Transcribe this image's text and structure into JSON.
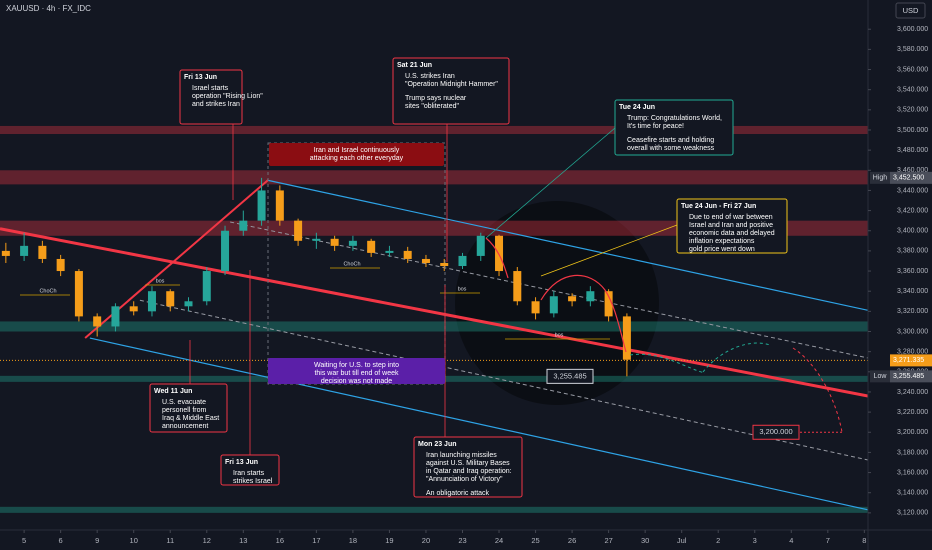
{
  "chart_data": {
    "type": "candlestick",
    "title": "XAUUSD · 4h · FX_IDC",
    "currency": "USD",
    "up_color": "#26a69a",
    "down_color": "#f59d1a",
    "x": [
      -0.5,
      0,
      0.5,
      1,
      1.5,
      2,
      2.5,
      3,
      3.5,
      4,
      4.5,
      5,
      5.5,
      6,
      6.5,
      7,
      7.5,
      8,
      8.5,
      9,
      9.5,
      10,
      10.5,
      11,
      11.5,
      12,
      12.5,
      13,
      13.5,
      14,
      14.5,
      15,
      15.5,
      16,
      16.5
    ],
    "open": [
      3380,
      3375,
      3385,
      3372,
      3360,
      3315,
      3305,
      3325,
      3320,
      3340,
      3325,
      3330,
      3360,
      3400,
      3410,
      3440,
      3410,
      3390,
      3392,
      3385,
      3390,
      3378,
      3380,
      3372,
      3368,
      3365,
      3375,
      3395,
      3360,
      3330,
      3318,
      3335,
      3330,
      3340,
      3315
    ],
    "high": [
      3388,
      3398,
      3390,
      3376,
      3362,
      3318,
      3328,
      3330,
      3345,
      3342,
      3334,
      3364,
      3405,
      3420,
      3452.5,
      3445,
      3412,
      3398,
      3395,
      3395,
      3392,
      3385,
      3384,
      3376,
      3372,
      3378,
      3398,
      3396,
      3364,
      3334,
      3340,
      3338,
      3345,
      3342,
      3318
    ],
    "low": [
      3368,
      3370,
      3368,
      3355,
      3310,
      3295,
      3300,
      3316,
      3315,
      3320,
      3320,
      3326,
      3356,
      3395,
      3405,
      3405,
      3385,
      3382,
      3380,
      3380,
      3374,
      3374,
      3368,
      3364,
      3360,
      3362,
      3370,
      3355,
      3326,
      3312,
      3314,
      3325,
      3325,
      3310,
      3255.485
    ],
    "close": [
      3375,
      3385,
      3372,
      3360,
      3315,
      3305,
      3325,
      3320,
      3340,
      3325,
      3330,
      3360,
      3400,
      3410,
      3440,
      3410,
      3390,
      3392,
      3385,
      3390,
      3378,
      3380,
      3372,
      3368,
      3365,
      3375,
      3395,
      3360,
      3330,
      3318,
      3335,
      3330,
      3340,
      3315,
      3272
    ],
    "xlim": [
      -0.66,
      23.1
    ],
    "xticks": [
      {
        "value": 0,
        "label": "5"
      },
      {
        "value": 1,
        "label": "6"
      },
      {
        "value": 2,
        "label": "9"
      },
      {
        "value": 3,
        "label": "10"
      },
      {
        "value": 4,
        "label": "11"
      },
      {
        "value": 5,
        "label": "12"
      },
      {
        "value": 6,
        "label": "13"
      },
      {
        "value": 7,
        "label": "16"
      },
      {
        "value": 8,
        "label": "17"
      },
      {
        "value": 9,
        "label": "18"
      },
      {
        "value": 10,
        "label": "19"
      },
      {
        "value": 11,
        "label": "20"
      },
      {
        "value": 12,
        "label": "23"
      },
      {
        "value": 13,
        "label": "24"
      },
      {
        "value": 14,
        "label": "25"
      },
      {
        "value": 15,
        "label": "26"
      },
      {
        "value": 16,
        "label": "27"
      },
      {
        "value": 17,
        "label": "30"
      },
      {
        "value": 18,
        "label": "Jul"
      },
      {
        "value": 19,
        "label": "2"
      },
      {
        "value": 20,
        "label": "3"
      },
      {
        "value": 21,
        "label": "4"
      },
      {
        "value": 22,
        "label": "7"
      },
      {
        "value": 23,
        "label": "8"
      }
    ],
    "ylim": [
      3103,
      3629
    ],
    "yticks": [
      {
        "value": 3120,
        "label": "3,120.000"
      },
      {
        "value": 3140,
        "label": "3,140.000"
      },
      {
        "value": 3160,
        "label": "3,160.000"
      },
      {
        "value": 3180,
        "label": "3,180.000"
      },
      {
        "value": 3200,
        "label": "3,200.000"
      },
      {
        "value": 3220,
        "label": "3,220.000"
      },
      {
        "value": 3240,
        "label": "3,240.000"
      },
      {
        "value": 3260,
        "label": "3,260.000"
      },
      {
        "value": 3280,
        "label": "3,280.000"
      },
      {
        "value": 3300,
        "label": "3,300.000"
      },
      {
        "value": 3320,
        "label": "3,320.000"
      },
      {
        "value": 3340,
        "label": "3,340.000"
      },
      {
        "value": 3360,
        "label": "3,360.000"
      },
      {
        "value": 3380,
        "label": "3,380.000"
      },
      {
        "value": 3400,
        "label": "3,400.000"
      },
      {
        "value": 3420,
        "label": "3,420.000"
      },
      {
        "value": 3440,
        "label": "3,440.000"
      },
      {
        "value": 3460,
        "label": "3,460.000"
      },
      {
        "value": 3480,
        "label": "3,480.000"
      },
      {
        "value": 3500,
        "label": "3,500.000"
      },
      {
        "value": 3520,
        "label": "3,520.000"
      },
      {
        "value": 3540,
        "label": "3,540.000"
      },
      {
        "value": 3560,
        "label": "3,560.000"
      },
      {
        "value": 3580,
        "label": "3,580.000"
      },
      {
        "value": 3600,
        "label": "3,600.000"
      }
    ],
    "price_labels": [
      {
        "name": "High",
        "value": 3452.5,
        "label": "3,452.500",
        "color": "#4a4e5a"
      },
      {
        "value": 3271.335,
        "label": "3,271.335",
        "color": "#f59d1a"
      },
      {
        "name": "Low",
        "value": 3255.485,
        "label": "3,255.485",
        "color": "#4a4e5a"
      }
    ],
    "target_labels": [
      {
        "value": 3255.485,
        "label": "3,255.485",
        "color": "#d1d4dc"
      },
      {
        "value": 3200,
        "label": "3,200.000",
        "color": "#f23645"
      }
    ],
    "zones": [
      {
        "range": [
          3496,
          3504
        ],
        "color": "#f23645"
      },
      {
        "range": [
          3446,
          3460
        ],
        "color": "#f23645"
      },
      {
        "range": [
          3395,
          3410
        ],
        "color": "#f23645"
      },
      {
        "range": [
          3300,
          3310
        ],
        "color": "#22ab94"
      },
      {
        "range": [
          3250,
          3256
        ],
        "color": "#22ab94"
      },
      {
        "range": [
          3120,
          3126
        ],
        "color": "#22ab94"
      }
    ],
    "lines": [
      {
        "from": [
          -0.66,
          3402
        ],
        "to": [
          23.1,
          3236
        ],
        "color": "#f23645",
        "width": 3
      },
      {
        "from": [
          1.67,
          3293.5
        ],
        "to": [
          6.68,
          3450.4
        ],
        "color": "#f23645",
        "width": 2
      },
      {
        "from": [
          6.68,
          3450
        ],
        "to": [
          23.1,
          3321
        ],
        "color": "#2ea3e6",
        "width": 1.2
      },
      {
        "from": [
          1.8,
          3293.5
        ],
        "to": [
          23.1,
          3123
        ],
        "color": "#2ea3e6",
        "width": 1.2
      },
      {
        "from": [
          5.64,
          3408.7
        ],
        "to": [
          23.1,
          3273.7
        ],
        "color": "#9598a1",
        "width": 1,
        "dashed": true
      },
      {
        "from": [
          3.17,
          3331
        ],
        "to": [
          23.1,
          3172.5
        ],
        "color": "#9598a1",
        "width": 1,
        "dashed": true
      }
    ],
    "markers": [
      {
        "label": "ChoCh"
      },
      {
        "label": "bos"
      },
      {
        "label": "ChoCh"
      },
      {
        "label": "bos"
      },
      {
        "label": "bos"
      }
    ],
    "annotations": [
      {
        "title": "Fri 13 Jun",
        "lines": [
          "Israel starts",
          "operation \"Rising Lion\"",
          "and strikes Iran"
        ]
      },
      {
        "title": "Sat 21 Jun",
        "lines": [
          "U.S. strikes Iran",
          "\"Operation Midnight Hammer\"",
          "Trump says nuclear",
          "sites \"obliterated\""
        ]
      },
      {
        "title": "Tue 24 Jun",
        "lines": [
          "Trump: Congratulations World,",
          "It's time for peace!",
          "Ceasefire starts and holding",
          "overall with some weakness"
        ]
      },
      {
        "lines": [
          "Iran and Israel continuously",
          "attacking each other everyday"
        ]
      },
      {
        "title": "Tue 24 Jun - Fri 27 Jun",
        "lines": [
          "Due to end of war between",
          "Israel and Iran and positive",
          "economic data and delayed",
          "inflation expectations",
          "gold price went down"
        ]
      },
      {
        "lines": [
          "Waiting for U.S. to step into",
          "this war but till end of week",
          "decision was not made"
        ]
      },
      {
        "title": "Wed 11 Jun",
        "lines": [
          "U.S. evacuate",
          "personell from",
          "Iraq & Middle East",
          "announcement"
        ]
      },
      {
        "title": "Fri 13 Jun",
        "lines": [
          "Iran starts",
          "strikes Israel"
        ]
      },
      {
        "title": "Mon 23 Jun",
        "lines": [
          "Iran launching missiles",
          "against U.S. Military Bases",
          "in Qatar and Iraq operation:",
          "\"Annunciation of Victory\"",
          "An obligatoric attack"
        ]
      }
    ]
  }
}
